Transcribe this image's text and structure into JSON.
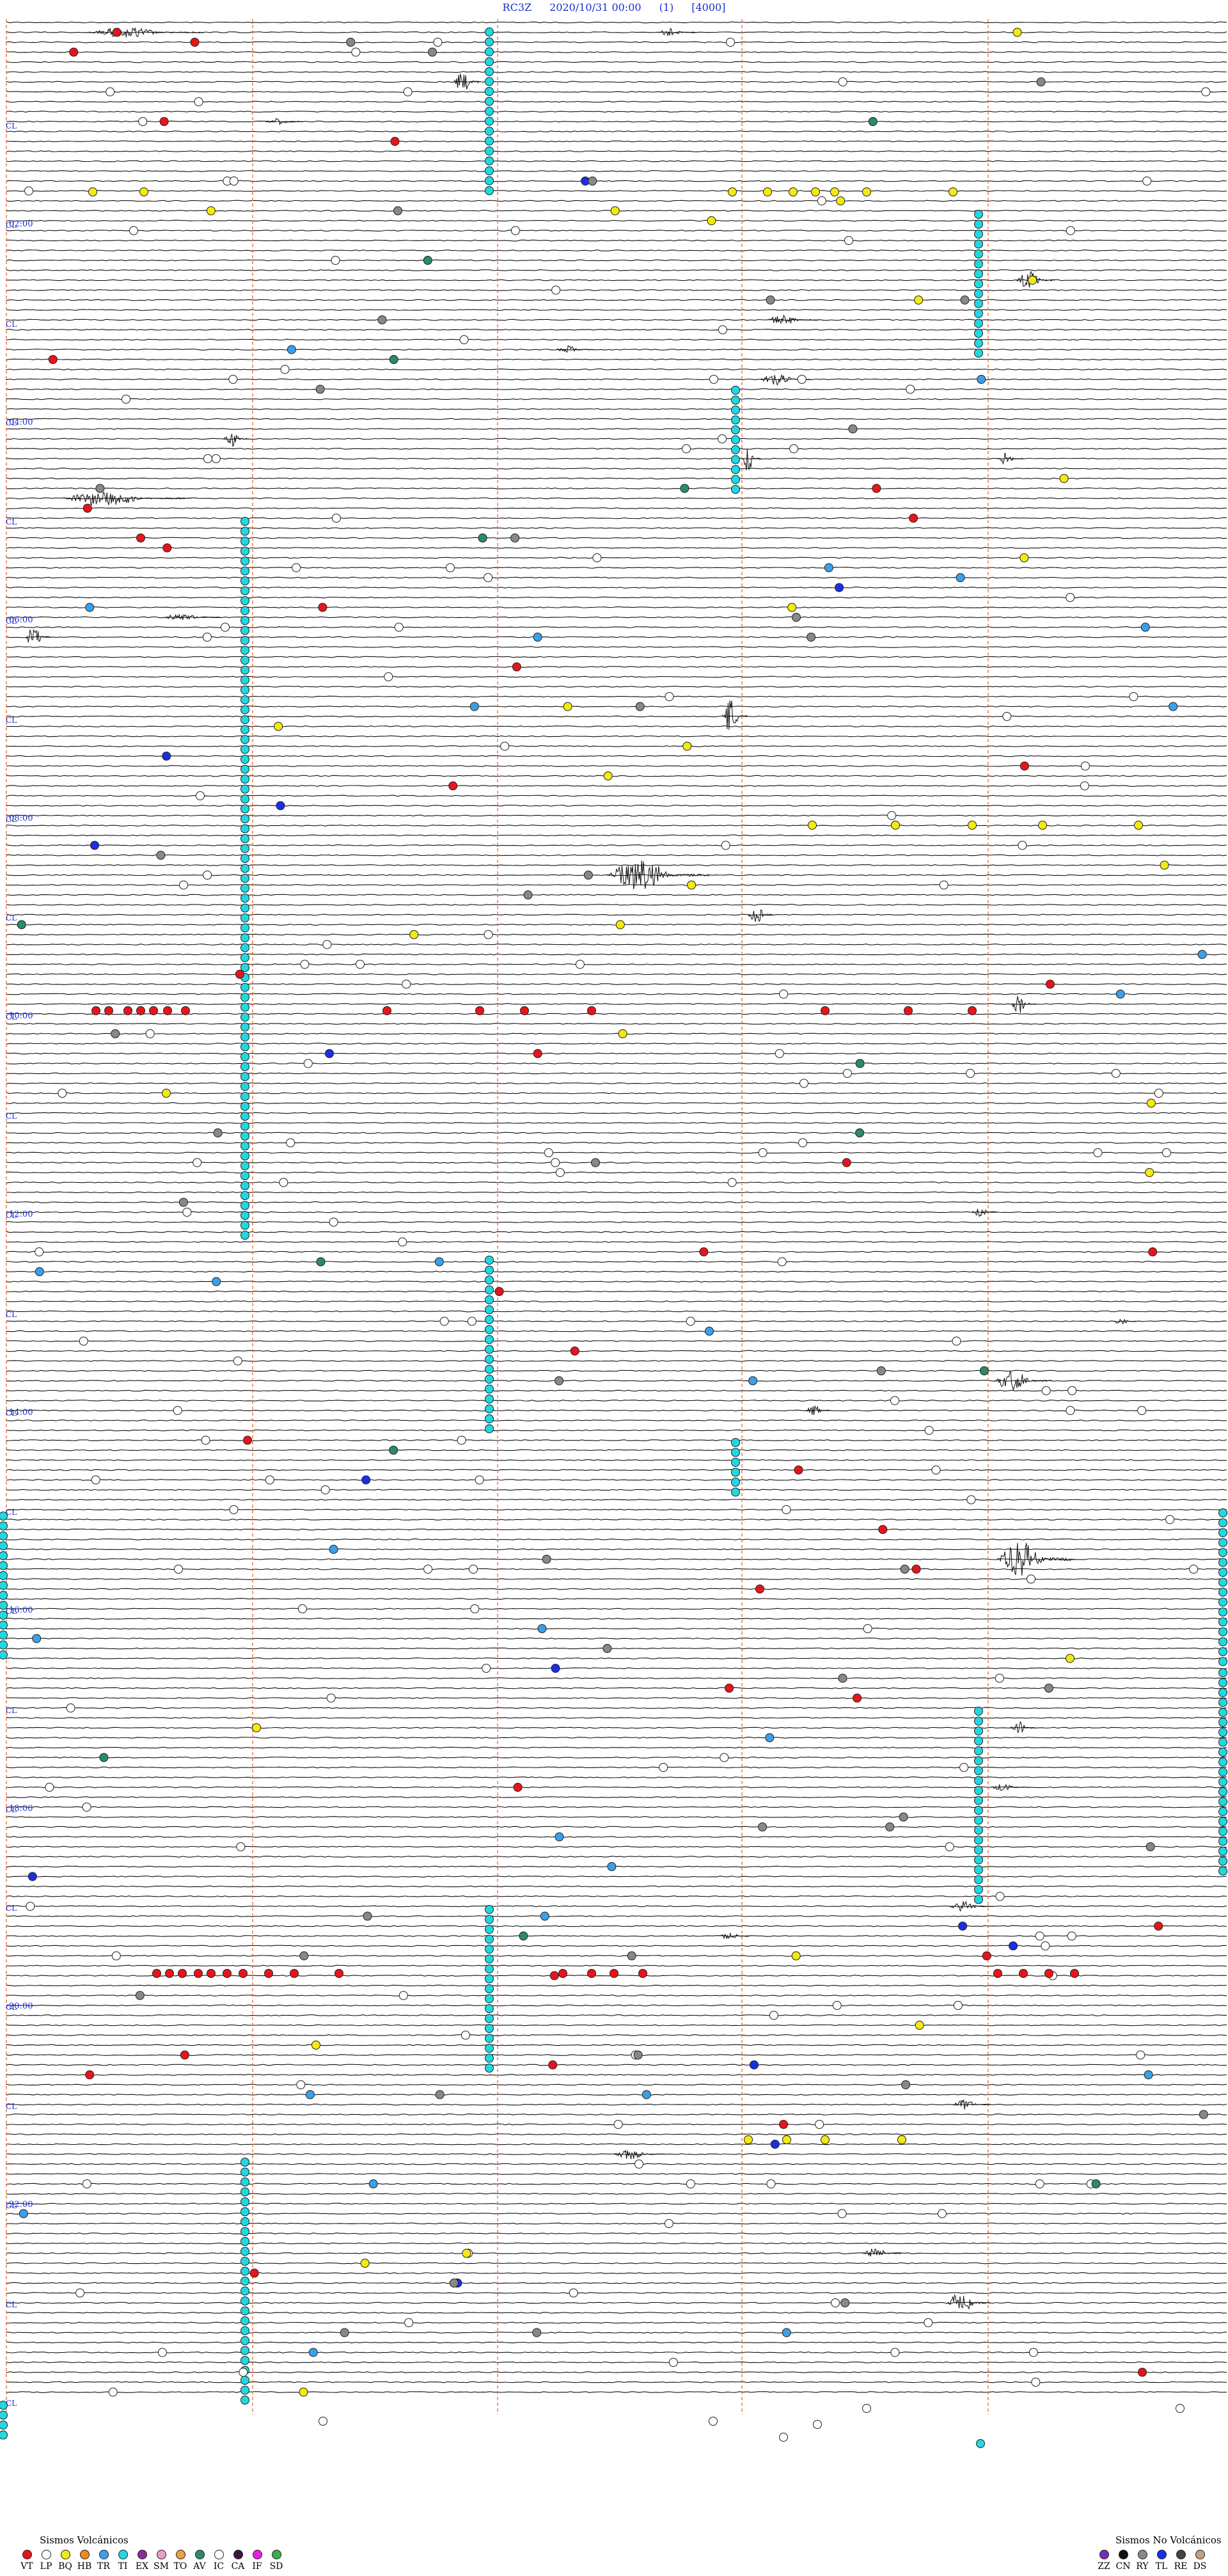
{
  "header": {
    "station": "RC3Z",
    "datetime": "2020/10/31 00:00",
    "index": "(1)",
    "scale": "[4000]"
  },
  "hour_labels": [
    "02:00",
    "04:00",
    "06:00",
    "08:00",
    "10:00",
    "12:00",
    "14:00",
    "16:00",
    "18:00",
    "20:00",
    "22:00"
  ],
  "cl_label": "CL",
  "legend_volcanic": {
    "title": "Sismos Volcánicos",
    "items": [
      {
        "code": "VT",
        "color": "#e8141c"
      },
      {
        "code": "LP",
        "color": "#ffffff"
      },
      {
        "code": "BQ",
        "color": "#f2ea10"
      },
      {
        "code": "HB",
        "color": "#f08a1c"
      },
      {
        "code": "TR",
        "color": "#3aa0e8"
      },
      {
        "code": "TI",
        "color": "#22d8e0"
      },
      {
        "code": "EX",
        "color": "#8a2c9c"
      },
      {
        "code": "SM",
        "color": "#e6a0c8"
      },
      {
        "code": "TO",
        "color": "#e8a040"
      },
      {
        "code": "AV",
        "color": "#2a8a6a"
      },
      {
        "code": "IC",
        "color": "#ffffff"
      },
      {
        "code": "CA",
        "color": "#3a1a3a"
      },
      {
        "code": "IF",
        "color": "#e820e0"
      },
      {
        "code": "SD",
        "color": "#3ab04a"
      }
    ]
  },
  "legend_nonvolcanic": {
    "title": "Sismos No Volcánicos",
    "items": [
      {
        "code": "ZZ",
        "color": "#7a2cb4"
      },
      {
        "code": "CN",
        "color": "#111111"
      },
      {
        "code": "RY",
        "color": "#888888"
      },
      {
        "code": "TL",
        "color": "#1a2ee8"
      },
      {
        "code": "RE",
        "color": "#444444"
      },
      {
        "code": "DS",
        "color": "#c0a080"
      }
    ]
  },
  "style": {
    "trace_color": "#111111",
    "marker_line_color": "#e86a2c",
    "label_color": "#1a2ecc",
    "ti_color": "#22d8e0",
    "lp_color": "#ffffff",
    "vt_color": "#e8141c",
    "bq_color": "#f2ea10",
    "tr_color": "#3aa0e8",
    "tl_color": "#1a2ee8",
    "rc_color": "#888888",
    "av_color": "#2a8a6a"
  }
}
